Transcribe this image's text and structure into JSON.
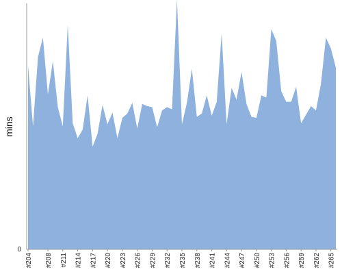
{
  "chart_data": {
    "type": "area",
    "title": "",
    "xlabel": "",
    "ylabel": "mins",
    "colors": {
      "area": "#8eb2dd",
      "axis": "#999999"
    },
    "grid": false,
    "legend": "none",
    "y_tick_labels": [
      "0"
    ],
    "ylim": [
      0,
      23
    ],
    "x": [
      "#204",
      "#205",
      "#206",
      "#207",
      "#208",
      "#209",
      "#210",
      "#211",
      "#212",
      "#213",
      "#214",
      "#215",
      "#216",
      "#217",
      "#218",
      "#219",
      "#220",
      "#221",
      "#222",
      "#223",
      "#224",
      "#225",
      "#226",
      "#227",
      "#228",
      "#229",
      "#230",
      "#231",
      "#232",
      "#233",
      "#234",
      "#235",
      "#236",
      "#237",
      "#238",
      "#239",
      "#240",
      "#241",
      "#242",
      "#243",
      "#244",
      "#245",
      "#246",
      "#247",
      "#248",
      "#249",
      "#250",
      "#251",
      "#252",
      "#253",
      "#254",
      "#255",
      "#256",
      "#257",
      "#258",
      "#259",
      "#260",
      "#261",
      "#262",
      "#263",
      "#264",
      "#265",
      "#266"
    ],
    "x_tick_labels": [
      "#204",
      "#208",
      "#211",
      "#214",
      "#217",
      "#220",
      "#223",
      "#226",
      "#229",
      "#232",
      "#235",
      "#238",
      "#241",
      "#244",
      "#247",
      "#250",
      "#253",
      "#256",
      "#259",
      "#262",
      "#265"
    ],
    "series": [
      {
        "values": [
          17.2,
          11.5,
          18.0,
          19.8,
          14.5,
          17.6,
          13.3,
          11.5,
          21.0,
          11.8,
          10.4,
          11.2,
          14.4,
          9.6,
          10.8,
          13.5,
          11.7,
          12.8,
          10.4,
          12.3,
          12.7,
          13.7,
          11.3,
          13.6,
          13.4,
          13.3,
          11.4,
          13.0,
          13.3,
          13.1,
          23.4,
          11.7,
          13.7,
          16.9,
          12.4,
          12.7,
          14.4,
          12.5,
          13.8,
          20.2,
          11.7,
          15.1,
          14.0,
          16.6,
          13.6,
          12.4,
          12.3,
          14.4,
          14.2,
          20.6,
          19.5,
          14.8,
          13.8,
          13.8,
          15.2,
          11.8,
          12.6,
          13.4,
          13.0,
          15.5,
          19.8,
          18.8,
          17.0
        ]
      }
    ]
  }
}
